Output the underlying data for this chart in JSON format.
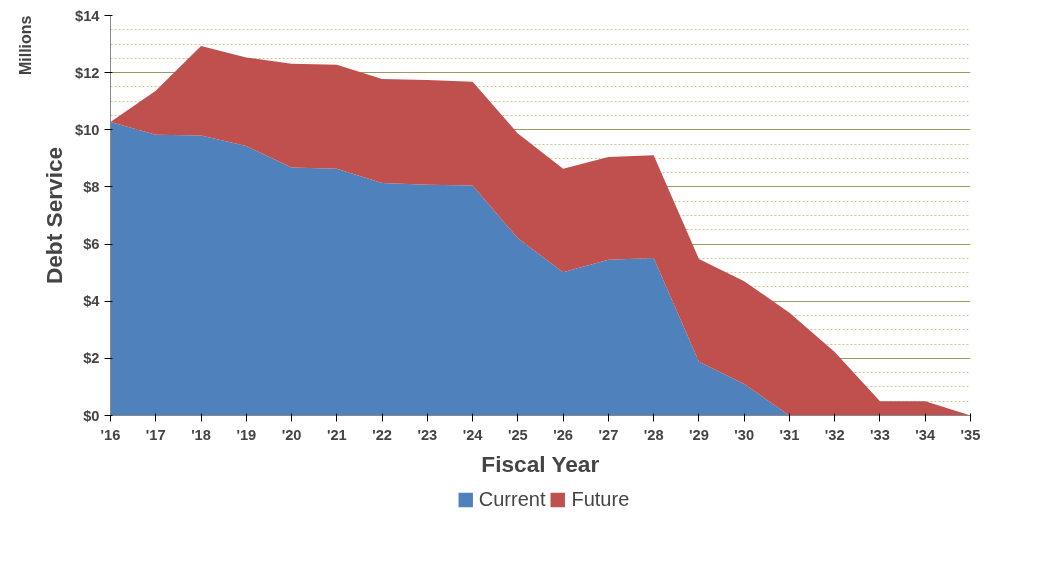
{
  "chart_data": {
    "type": "area",
    "stacked": true,
    "xlabel": "Fiscal Year",
    "ylabel": "Debt Service",
    "annotations": [
      "Millions"
    ],
    "categories": [
      "'16",
      "'17",
      "'18",
      "'19",
      "'20",
      "'21",
      "'22",
      "'23",
      "'24",
      "'25",
      "'26",
      "'27",
      "'28",
      "'29",
      "'30",
      "'31",
      "'32",
      "'33",
      "'34",
      "'35"
    ],
    "series": [
      {
        "name": "Current",
        "color": "#4f81bd",
        "values": [
          10.27,
          9.83,
          9.8,
          9.43,
          8.68,
          8.64,
          8.14,
          8.08,
          8.05,
          6.2,
          5.01,
          5.45,
          5.51,
          1.88,
          1.1,
          0,
          0,
          0,
          0,
          0
        ]
      },
      {
        "name": "Future",
        "color": "#c0504d",
        "values": [
          0,
          1.54,
          3.13,
          3.1,
          3.63,
          3.64,
          3.64,
          3.66,
          3.63,
          3.67,
          3.63,
          3.6,
          3.6,
          3.6,
          3.6,
          3.6,
          2.22,
          0.5,
          0.5,
          0
        ]
      }
    ],
    "ylim": [
      0,
      14
    ],
    "yticks": [
      {
        "value": 0,
        "label": "$0"
      },
      {
        "value": 2,
        "label": "$2"
      },
      {
        "value": 4,
        "label": "$4"
      },
      {
        "value": 6,
        "label": "$6"
      },
      {
        "value": 8,
        "label": "$8"
      },
      {
        "value": 10,
        "label": "$10"
      },
      {
        "value": 12,
        "label": "$12"
      },
      {
        "value": 14,
        "label": "$14"
      }
    ],
    "grid": "y",
    "legend": "bottom"
  }
}
